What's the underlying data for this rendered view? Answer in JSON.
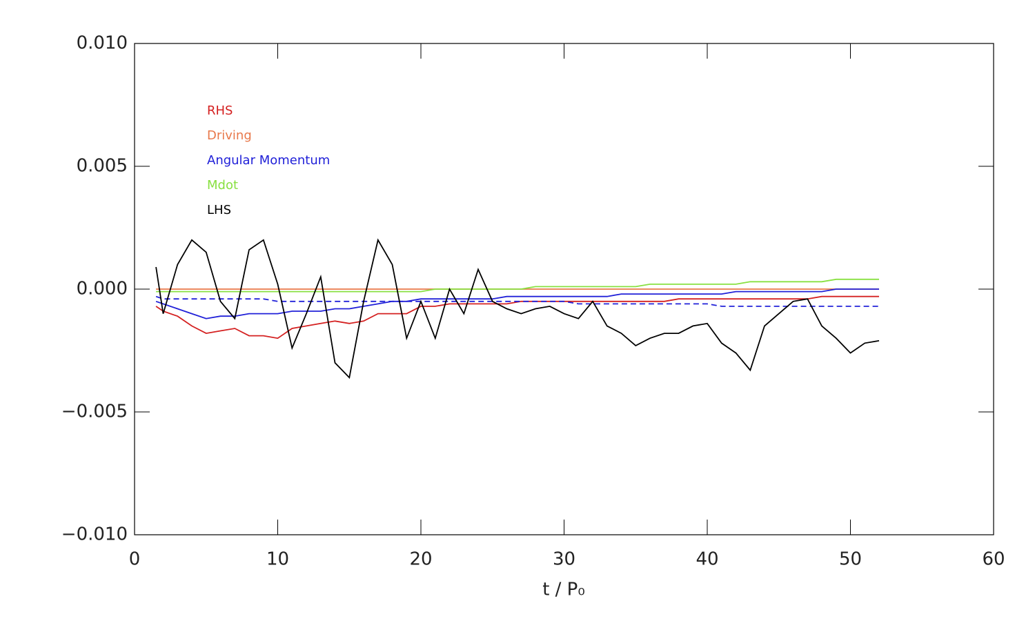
{
  "chart_data": {
    "type": "line",
    "xlabel": "t / P₀",
    "xlim": [
      0,
      60
    ],
    "xticks": [
      0,
      10,
      20,
      30,
      40,
      50,
      60
    ],
    "ylim": [
      -0.01,
      0.01
    ],
    "yticks": [
      {
        "value": -0.01,
        "label": "−0.010"
      },
      {
        "value": -0.005,
        "label": "−0.005"
      },
      {
        "value": 0,
        "label": "0.000"
      },
      {
        "value": 0.005,
        "label": "0.005"
      },
      {
        "value": 0.01,
        "label": "0.010"
      }
    ],
    "legend": "upper left",
    "x": [
      1.5,
      2,
      3,
      4,
      5,
      6,
      7,
      8,
      9,
      10,
      11,
      12,
      13,
      14,
      15,
      16,
      17,
      18,
      19,
      20,
      21,
      22,
      23,
      24,
      25,
      26,
      27,
      28,
      29,
      30,
      31,
      32,
      33,
      34,
      35,
      36,
      37,
      38,
      39,
      40,
      41,
      42,
      43,
      44,
      45,
      46,
      47,
      48,
      49,
      50,
      51,
      52
    ],
    "series": [
      {
        "name": "RHS",
        "color": "#d42020",
        "values": [
          -0.0007,
          -0.0009,
          -0.0011,
          -0.0015,
          -0.0018,
          -0.0017,
          -0.0016,
          -0.0019,
          -0.0019,
          -0.002,
          -0.0016,
          -0.0015,
          -0.0014,
          -0.0013,
          -0.0014,
          -0.0013,
          -0.001,
          -0.001,
          -0.001,
          -0.0007,
          -0.0007,
          -0.0006,
          -0.0006,
          -0.0006,
          -0.0006,
          -0.0006,
          -0.0005,
          -0.0005,
          -0.0005,
          -0.0005,
          -0.0005,
          -0.0005,
          -0.0005,
          -0.0005,
          -0.0005,
          -0.0005,
          -0.0005,
          -0.0004,
          -0.0004,
          -0.0004,
          -0.0004,
          -0.0004,
          -0.0004,
          -0.0004,
          -0.0004,
          -0.0004,
          -0.0004,
          -0.0003,
          -0.0003,
          -0.0003,
          -0.0003,
          -0.0003
        ]
      },
      {
        "name": "Driving",
        "color": "#e8784a",
        "values": [
          0,
          0,
          0,
          0,
          0,
          0,
          0,
          0,
          0,
          0,
          0,
          0,
          0,
          0,
          0,
          0,
          0,
          0,
          0,
          0,
          0,
          0,
          0,
          0,
          0,
          0,
          0,
          0,
          0,
          0,
          0,
          0,
          0,
          0,
          0,
          0,
          0,
          0,
          0,
          0,
          0,
          0,
          0,
          0,
          0,
          0,
          0,
          0,
          0,
          0,
          0,
          0
        ]
      },
      {
        "name": "Angular Momentum",
        "color": "#2020d8",
        "values": [
          -0.0005,
          -0.0006,
          -0.0008,
          -0.001,
          -0.0012,
          -0.0011,
          -0.0011,
          -0.001,
          -0.001,
          -0.001,
          -0.0009,
          -0.0009,
          -0.0009,
          -0.0008,
          -0.0008,
          -0.0007,
          -0.0006,
          -0.0005,
          -0.0005,
          -0.0004,
          -0.0004,
          -0.0004,
          -0.0004,
          -0.0004,
          -0.0004,
          -0.0003,
          -0.0003,
          -0.0003,
          -0.0003,
          -0.0003,
          -0.0003,
          -0.0003,
          -0.0003,
          -0.0002,
          -0.0002,
          -0.0002,
          -0.0002,
          -0.0002,
          -0.0002,
          -0.0002,
          -0.0002,
          -0.0001,
          -0.0001,
          -0.0001,
          -0.0001,
          -0.0001,
          -0.0001,
          -0.0001,
          0,
          0,
          0,
          0
        ]
      },
      {
        "color": "#2020d8",
        "linestyle": "dashed",
        "values": [
          -0.0003,
          -0.0004,
          -0.0004,
          -0.0004,
          -0.0004,
          -0.0004,
          -0.0004,
          -0.0004,
          -0.0004,
          -0.0005,
          -0.0005,
          -0.0005,
          -0.0005,
          -0.0005,
          -0.0005,
          -0.0005,
          -0.0005,
          -0.0005,
          -0.0005,
          -0.0005,
          -0.0005,
          -0.0005,
          -0.0005,
          -0.0005,
          -0.0005,
          -0.0005,
          -0.0005,
          -0.0005,
          -0.0005,
          -0.0005,
          -0.0006,
          -0.0006,
          -0.0006,
          -0.0006,
          -0.0006,
          -0.0006,
          -0.0006,
          -0.0006,
          -0.0006,
          -0.0006,
          -0.0007,
          -0.0007,
          -0.0007,
          -0.0007,
          -0.0007,
          -0.0007,
          -0.0007,
          -0.0007,
          -0.0007,
          -0.0007,
          -0.0007,
          -0.0007
        ]
      },
      {
        "name": "Mdot",
        "color": "#88e040",
        "values": [
          -0.0001,
          -0.0001,
          -0.0001,
          -0.0001,
          -0.0001,
          -0.0001,
          -0.0001,
          -0.0001,
          -0.0001,
          -0.0001,
          -0.0001,
          -0.0001,
          -0.0001,
          -0.0001,
          -0.0001,
          -0.0001,
          -0.0001,
          -0.0001,
          -0.0001,
          -0.0001,
          0,
          0,
          0,
          0,
          0,
          0,
          0,
          0.0001,
          0.0001,
          0.0001,
          0.0001,
          0.0001,
          0.0001,
          0.0001,
          0.0001,
          0.0002,
          0.0002,
          0.0002,
          0.0002,
          0.0002,
          0.0002,
          0.0002,
          0.0003,
          0.0003,
          0.0003,
          0.0003,
          0.0003,
          0.0003,
          0.0004,
          0.0004,
          0.0004,
          0.0004
        ]
      },
      {
        "name": "LHS",
        "color": "#000000",
        "values": [
          0.0009,
          -0.001,
          0.001,
          0.002,
          0.0015,
          -0.0005,
          -0.0012,
          0.0016,
          0.002,
          0.0002,
          -0.0024,
          -0.001,
          0.0005,
          -0.003,
          -0.0036,
          -0.0005,
          0.002,
          0.001,
          -0.002,
          -0.0005,
          -0.002,
          0,
          -0.001,
          0.0008,
          -0.0005,
          -0.0008,
          -0.001,
          -0.0008,
          -0.0007,
          -0.001,
          -0.0012,
          -0.0005,
          -0.0015,
          -0.0018,
          -0.0023,
          -0.002,
          -0.0018,
          -0.0018,
          -0.0015,
          -0.0014,
          -0.0022,
          -0.0026,
          -0.0033,
          -0.0015,
          -0.001,
          -0.0005,
          -0.0004,
          -0.0015,
          -0.002,
          -0.0026,
          -0.0022,
          -0.0021
        ]
      }
    ]
  }
}
